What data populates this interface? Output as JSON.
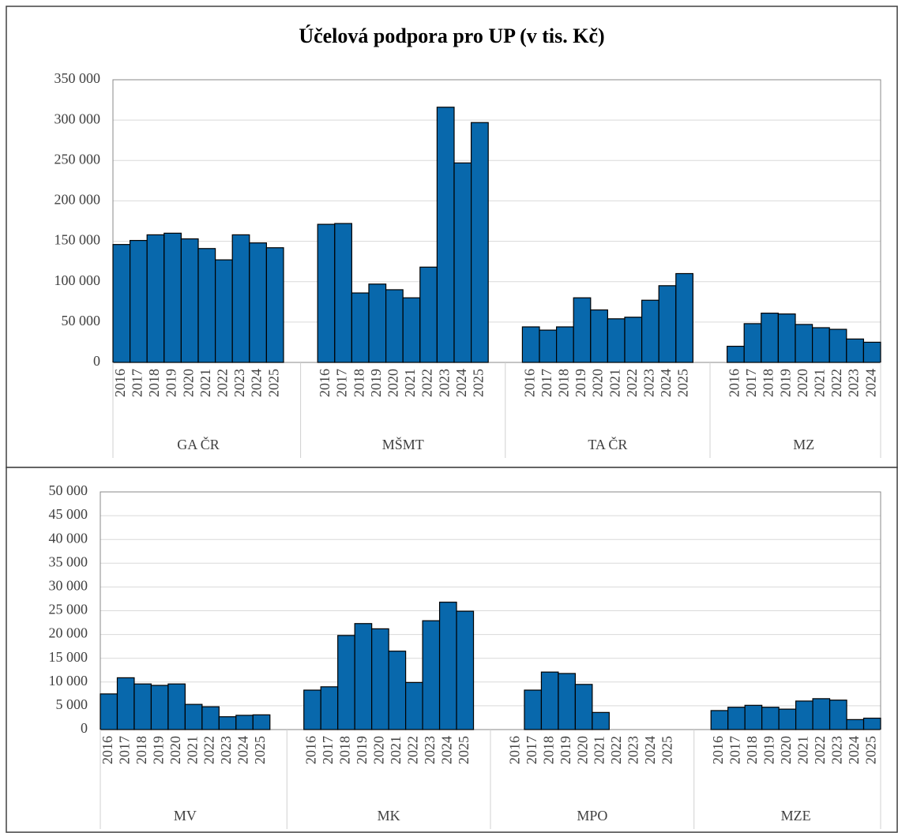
{
  "chart_data": [
    {
      "type": "bar",
      "title": "Účelová podpora pro UP (v tis. Kč)",
      "color": "#0868ac",
      "grid": true,
      "ylim": [
        0,
        350000
      ],
      "yticks": [
        0,
        {
          "value": 50000,
          "label": "50 000"
        },
        {
          "value": 100000,
          "label": "100 000"
        },
        {
          "value": 150000,
          "label": "150 000"
        },
        {
          "value": 200000,
          "label": "200 000"
        },
        {
          "value": 250000,
          "label": "250 000"
        },
        {
          "value": 300000,
          "label": "300 000"
        },
        {
          "value": 350000,
          "label": "350 000"
        }
      ],
      "groups": [
        {
          "name": "GA ČR",
          "categories": [
            "2016",
            "2017",
            "2018",
            "2019",
            "2020",
            "2021",
            "2022",
            "2023",
            "2024",
            "2025"
          ],
          "values": [
            146000,
            151000,
            158000,
            160000,
            153000,
            141000,
            127000,
            158000,
            148000,
            142000
          ]
        },
        {
          "name": "MŠMT",
          "categories": [
            "2016",
            "2017",
            "2018",
            "2019",
            "2020",
            "2021",
            "2022",
            "2023",
            "2024",
            "2025"
          ],
          "values": [
            171000,
            172000,
            86000,
            97000,
            90000,
            80000,
            118000,
            316000,
            247000,
            297000
          ]
        },
        {
          "name": "TA ČR",
          "categories": [
            "2016",
            "2017",
            "2018",
            "2019",
            "2020",
            "2021",
            "2022",
            "2023",
            "2024",
            "2025"
          ],
          "values": [
            44000,
            40000,
            44000,
            80000,
            65000,
            54000,
            56000,
            77000,
            95000,
            110000
          ]
        },
        {
          "name": "MZ",
          "categories": [
            "2016",
            "2017",
            "2018",
            "2019",
            "2020",
            "2021",
            "2022",
            "2023",
            "2024"
          ],
          "values": [
            20000,
            48000,
            61000,
            60000,
            47000,
            43000,
            41000,
            29000,
            25000
          ]
        }
      ]
    },
    {
      "type": "bar",
      "color": "#0868ac",
      "grid": true,
      "ylim": [
        0,
        50000
      ],
      "yticks": [
        0,
        {
          "value": 5000,
          "label": "5 000"
        },
        {
          "value": 10000,
          "label": "10 000"
        },
        {
          "value": 15000,
          "label": "15 000"
        },
        {
          "value": 20000,
          "label": "20 000"
        },
        {
          "value": 25000,
          "label": "25 000"
        },
        {
          "value": 30000,
          "label": "30 000"
        },
        {
          "value": 35000,
          "label": "35 000"
        },
        {
          "value": 40000,
          "label": "40 000"
        },
        {
          "value": 45000,
          "label": "45 000"
        },
        {
          "value": 50000,
          "label": "50 000"
        }
      ],
      "groups": [
        {
          "name": "MV",
          "categories": [
            "2016",
            "2017",
            "2018",
            "2019",
            "2020",
            "2021",
            "2022",
            "2023",
            "2024",
            "2025"
          ],
          "values": [
            7500,
            10900,
            9600,
            9300,
            9600,
            5300,
            4800,
            2700,
            3000,
            3100
          ]
        },
        {
          "name": "MK",
          "categories": [
            "2016",
            "2017",
            "2018",
            "2019",
            "2020",
            "2021",
            "2022",
            "2023",
            "2024",
            "2025"
          ],
          "values": [
            8300,
            9000,
            19800,
            22300,
            21200,
            16500,
            9900,
            22900,
            26800,
            24900
          ]
        },
        {
          "name": "MPO",
          "categories": [
            "2016",
            "2017",
            "2018",
            "2019",
            "2020",
            "2021",
            "2022",
            "2023",
            "2024",
            "2025"
          ],
          "values": [
            null,
            8300,
            12100,
            11800,
            9500,
            3600,
            null,
            null,
            null,
            null
          ]
        },
        {
          "name": "MZE",
          "categories": [
            "2016",
            "2017",
            "2018",
            "2019",
            "2020",
            "2021",
            "2022",
            "2023",
            "2024",
            "2025"
          ],
          "values": [
            4000,
            4700,
            5100,
            4700,
            4300,
            6000,
            6500,
            6200,
            2100,
            2400
          ]
        }
      ]
    }
  ]
}
